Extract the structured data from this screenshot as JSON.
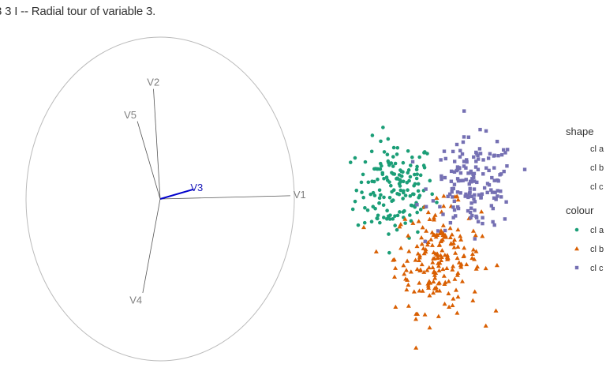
{
  "title": "3 3 I -- Radial tour of variable 3.",
  "colors": {
    "cl a": "#1b9e77",
    "cl b": "#d95f02",
    "cl c": "#7570b3",
    "axis": "#888888",
    "highlight": "#0000cc",
    "circle": "#bbbbbb"
  },
  "chart_data": [
    {
      "type": "axes-biplot",
      "axes": [
        {
          "name": "V1",
          "x": 0.97,
          "y": 0.02
        },
        {
          "name": "V2",
          "x": -0.05,
          "y": 0.68
        },
        {
          "name": "V3",
          "x": 0.25,
          "y": 0.06,
          "highlight": true
        },
        {
          "name": "V4",
          "x": -0.13,
          "y": -0.58
        },
        {
          "name": "V5",
          "x": -0.17,
          "y": 0.48
        }
      ],
      "xlim": [
        -1,
        1
      ],
      "ylim": [
        -1,
        1
      ]
    },
    {
      "type": "scatter",
      "xlim": [
        -3,
        3
      ],
      "ylim": [
        -3,
        3
      ],
      "series": [
        {
          "name": "cl a",
          "shape": "circle",
          "center": [
            -1.2,
            0.7
          ],
          "spread": [
            0.55,
            0.6
          ],
          "n": 160
        },
        {
          "name": "cl b",
          "shape": "triangle",
          "center": [
            0.0,
            -1.0
          ],
          "spread": [
            0.6,
            0.65
          ],
          "n": 200
        },
        {
          "name": "cl c",
          "shape": "square",
          "center": [
            1.0,
            0.8
          ],
          "spread": [
            0.6,
            0.55
          ],
          "n": 160
        }
      ]
    }
  ],
  "legend": {
    "shape_title": "shape",
    "colour_title": "colour",
    "items": [
      "cl a",
      "cl b",
      "cl c"
    ]
  }
}
